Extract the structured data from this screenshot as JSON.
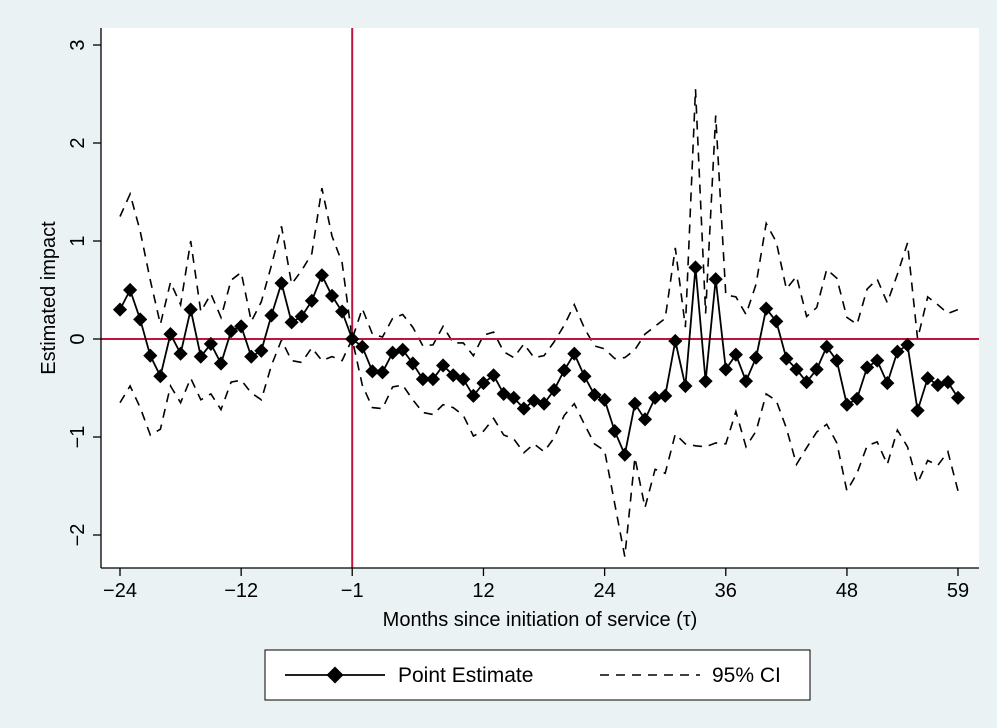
{
  "chart_data": {
    "type": "line",
    "title": "",
    "xlabel": "Months since initiation of service (τ)",
    "ylabel": "Estimated impact",
    "xlim": [
      -25,
      60
    ],
    "ylim": [
      -2.35,
      3.1
    ],
    "xticks": [
      -24,
      -12,
      -1,
      12,
      24,
      36,
      48,
      59
    ],
    "xtick_labels": [
      "−24",
      "−12",
      "−1",
      "12",
      "24",
      "36",
      "48",
      "59"
    ],
    "yticks": [
      -2,
      -1,
      0,
      1,
      2,
      3
    ],
    "ytick_labels": [
      "−2",
      "−1",
      "0",
      "1",
      "2",
      "3"
    ],
    "reference_lines": {
      "x": -1,
      "y": 0,
      "color": "#c0143c"
    },
    "grid": false,
    "legend_position": "bottom",
    "x": [
      -24,
      -23,
      -22,
      -21,
      -20,
      -19,
      -18,
      -17,
      -16,
      -15,
      -14,
      -13,
      -12,
      -11,
      -10,
      -9,
      -8,
      -7,
      -6,
      -5,
      -4,
      -3,
      -2,
      -1,
      0,
      1,
      2,
      3,
      4,
      5,
      6,
      7,
      8,
      9,
      10,
      11,
      12,
      13,
      14,
      15,
      16,
      17,
      18,
      19,
      20,
      21,
      22,
      23,
      24,
      25,
      26,
      27,
      28,
      29,
      30,
      31,
      32,
      33,
      34,
      35,
      36,
      37,
      38,
      39,
      40,
      41,
      42,
      43,
      44,
      45,
      46,
      47,
      48,
      49,
      50,
      51,
      52,
      53,
      54,
      55,
      56,
      57,
      58,
      59
    ],
    "series": [
      {
        "name": "Point Estimate",
        "style": "solid-diamond",
        "color": "#000000",
        "values": [
          0.3,
          0.5,
          0.2,
          -0.17,
          -0.38,
          0.05,
          -0.15,
          0.3,
          -0.18,
          -0.05,
          -0.25,
          0.08,
          0.13,
          -0.18,
          -0.12,
          0.24,
          0.57,
          0.17,
          0.23,
          0.39,
          0.65,
          0.44,
          0.28,
          0.0,
          -0.08,
          -0.33,
          -0.34,
          -0.14,
          -0.11,
          -0.25,
          -0.41,
          -0.41,
          -0.27,
          -0.37,
          -0.41,
          -0.58,
          -0.45,
          -0.37,
          -0.56,
          -0.6,
          -0.71,
          -0.63,
          -0.66,
          -0.52,
          -0.32,
          -0.15,
          -0.38,
          -0.57,
          -0.62,
          -0.94,
          -1.18,
          -0.66,
          -0.82,
          -0.6,
          -0.58,
          -0.02,
          -0.48,
          0.73,
          -0.43,
          0.61,
          -0.31,
          -0.16,
          -0.43,
          -0.19,
          0.31,
          0.18,
          -0.2,
          -0.31,
          -0.44,
          -0.31,
          -0.08,
          -0.22,
          -0.67,
          -0.61,
          -0.29,
          -0.22,
          -0.45,
          -0.13,
          -0.06,
          -0.73,
          -0.4,
          -0.47,
          -0.44,
          -0.6
        ]
      },
      {
        "name": "95% CI",
        "style": "dashed",
        "color": "#000000",
        "values": [
          1.25,
          1.48,
          1.1,
          0.6,
          0.15,
          0.58,
          0.35,
          1.0,
          0.28,
          0.46,
          0.22,
          0.6,
          0.68,
          0.18,
          0.38,
          0.75,
          1.15,
          0.56,
          0.7,
          0.87,
          1.54,
          1.05,
          0.78,
          0.0,
          0.31,
          0.05,
          0.02,
          0.21,
          0.25,
          0.12,
          -0.07,
          -0.06,
          0.13,
          -0.04,
          -0.04,
          -0.17,
          0.04,
          0.07,
          -0.13,
          -0.19,
          -0.05,
          -0.19,
          -0.17,
          -0.03,
          0.14,
          0.35,
          0.11,
          -0.07,
          -0.1,
          -0.2,
          -0.19,
          -0.11,
          0.05,
          0.13,
          0.21,
          0.93,
          0.12,
          2.55,
          0.26,
          2.28,
          0.45,
          0.43,
          0.25,
          0.56,
          1.18,
          0.99,
          0.51,
          0.64,
          0.23,
          0.32,
          0.71,
          0.62,
          0.22,
          0.15,
          0.51,
          0.61,
          0.37,
          0.66,
          0.98,
          -0.0,
          0.43,
          0.35,
          0.26,
          0.3
        ]
      },
      {
        "name": "95% CI",
        "style": "dashed",
        "color": "#000000",
        "values": [
          -0.65,
          -0.48,
          -0.7,
          -0.98,
          -0.92,
          -0.48,
          -0.65,
          -0.4,
          -0.62,
          -0.56,
          -0.72,
          -0.44,
          -0.42,
          -0.55,
          -0.62,
          -0.27,
          -0.01,
          -0.22,
          -0.24,
          -0.09,
          -0.22,
          -0.18,
          -0.22,
          0.0,
          -0.47,
          -0.7,
          -0.71,
          -0.49,
          -0.47,
          -0.62,
          -0.75,
          -0.77,
          -0.67,
          -0.7,
          -0.78,
          -0.99,
          -0.94,
          -0.81,
          -0.98,
          -1.02,
          -1.16,
          -1.07,
          -1.15,
          -1.01,
          -0.78,
          -0.66,
          -0.87,
          -1.07,
          -1.14,
          -1.68,
          -2.22,
          -1.21,
          -1.72,
          -1.33,
          -1.37,
          -0.97,
          -1.07,
          -1.09,
          -1.1,
          -1.06,
          -1.07,
          -0.74,
          -1.1,
          -0.94,
          -0.56,
          -0.63,
          -0.91,
          -1.28,
          -1.11,
          -0.95,
          -0.87,
          -1.06,
          -1.55,
          -1.37,
          -1.09,
          -1.05,
          -1.28,
          -0.93,
          -1.1,
          -1.47,
          -1.24,
          -1.29,
          -1.15,
          -1.55
        ]
      }
    ]
  },
  "legend": {
    "items": [
      {
        "label": "Point Estimate"
      },
      {
        "label": "95% CI"
      }
    ]
  }
}
